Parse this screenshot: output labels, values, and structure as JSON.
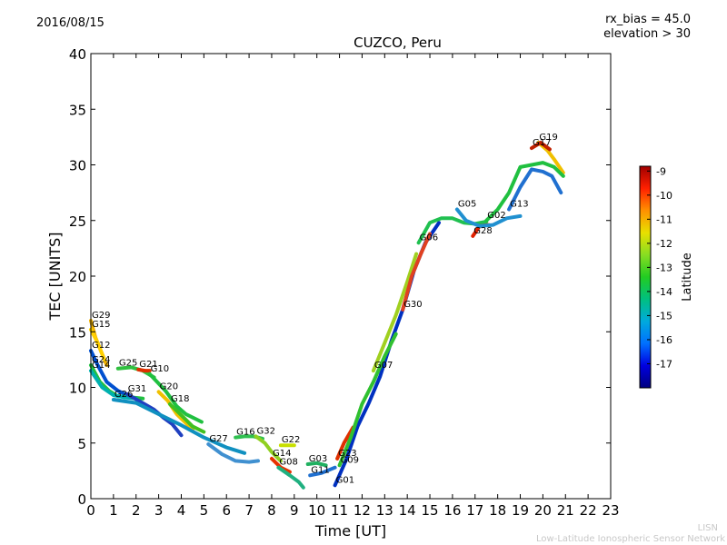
{
  "header": {
    "date": "2016/08/15",
    "annotation_1": "rx_bias = 45.0",
    "annotation_2": "elevation > 30",
    "title": "CUZCO, Peru"
  },
  "footer": {
    "credit_1": "LISN",
    "credit_2": "Low-Latitude Ionospheric Sensor Network"
  },
  "chart_data": {
    "type": "scatter",
    "title": "CUZCO, Peru",
    "xlabel": "Time [UT]",
    "ylabel": "TEC [UNITS]",
    "xlim": [
      0,
      23
    ],
    "ylim": [
      0,
      40
    ],
    "xticks": [
      "0",
      "1",
      "2",
      "3",
      "4",
      "5",
      "6",
      "7",
      "8",
      "9",
      "10",
      "11",
      "12",
      "13",
      "14",
      "15",
      "16",
      "17",
      "18",
      "19",
      "20",
      "21",
      "22",
      "23"
    ],
    "yticks": [
      "0",
      "5",
      "10",
      "15",
      "20",
      "25",
      "30",
      "35",
      "40"
    ],
    "grid": false,
    "colorbar": {
      "label": "Latitude",
      "min": -18,
      "max": -8.8,
      "ticks": [
        "-9",
        "-10",
        "-11",
        "-12",
        "-13",
        "-14",
        "-15",
        "-16",
        "-17"
      ],
      "tick_values": [
        -9,
        -10,
        -11,
        -12,
        -13,
        -14,
        -15,
        -16,
        -17
      ],
      "colormap": [
        "#00007f",
        "#0000ff",
        "#007fff",
        "#00ffff",
        "#7fff7f",
        "#ffff00",
        "#ff7f00",
        "#ff0000",
        "#7f0000"
      ],
      "display_colormap": [
        "#00007f",
        "#0000e0",
        "#0070ff",
        "#00aadd",
        "#00c080",
        "#22cc22",
        "#88dd22",
        "#e8e000",
        "#ff9000",
        "#ff2000",
        "#a00000"
      ]
    },
    "series": [
      {
        "name": "G29",
        "color": "#f0b000",
        "points": [
          [
            0,
            16
          ],
          [
            0.2,
            14.5
          ],
          [
            0.5,
            13
          ],
          [
            0.7,
            12
          ]
        ]
      },
      {
        "name": "G15",
        "color": "#ffd000",
        "points": [
          [
            0,
            15.2
          ],
          [
            0.3,
            14
          ],
          [
            0.6,
            12.5
          ]
        ]
      },
      {
        "name": "G12",
        "color": "#0050d0",
        "points": [
          [
            0,
            13.3
          ],
          [
            0.3,
            12
          ],
          [
            0.7,
            10.5
          ],
          [
            1.2,
            9.7
          ],
          [
            1.8,
            9.1
          ]
        ]
      },
      {
        "name": "G24",
        "color": "#20c040",
        "points": [
          [
            0,
            12
          ],
          [
            0.4,
            10.5
          ],
          [
            0.8,
            9.7
          ],
          [
            1.2,
            9.2
          ],
          [
            1.8,
            9.1
          ],
          [
            2.3,
            9.0
          ]
        ]
      },
      {
        "name": "G14",
        "color": "#00b0b0",
        "points": [
          [
            0,
            11.5
          ],
          [
            0.5,
            10
          ],
          [
            1,
            9.3
          ],
          [
            1.5,
            9.1
          ],
          [
            2,
            9.0
          ]
        ]
      },
      {
        "name": "G25",
        "color": "#30c040",
        "points": [
          [
            1.2,
            11.7
          ],
          [
            1.8,
            11.8
          ],
          [
            2.3,
            11.5
          ],
          [
            2.8,
            10.9
          ]
        ]
      },
      {
        "name": "G21",
        "color": "#e03000",
        "points": [
          [
            2.1,
            11.6
          ],
          [
            2.4,
            11.5
          ],
          [
            2.6,
            11.5
          ]
        ]
      },
      {
        "name": "G20",
        "color": "#f0c000",
        "points": [
          [
            3,
            9.6
          ],
          [
            3.4,
            8.8
          ],
          [
            3.8,
            7.6
          ],
          [
            4.2,
            6.8
          ],
          [
            4.5,
            6.2
          ]
        ]
      },
      {
        "name": "G31",
        "color": "#2040c0",
        "points": [
          [
            1.6,
            9.4
          ],
          [
            2.2,
            8.7
          ],
          [
            2.8,
            8.0
          ],
          [
            3.2,
            7.3
          ],
          [
            3.6,
            6.7
          ],
          [
            4.0,
            5.7
          ]
        ]
      },
      {
        "name": "G18",
        "color": "#40c020",
        "points": [
          [
            3.5,
            8.5
          ],
          [
            4.0,
            7.5
          ],
          [
            4.5,
            6.5
          ],
          [
            5.0,
            6.0
          ]
        ]
      },
      {
        "name": "G10",
        "color": "#20c040",
        "points": [
          [
            2.6,
            11.2
          ],
          [
            3.3,
            9.7
          ],
          [
            3.8,
            8.3
          ],
          [
            4.2,
            7.6
          ],
          [
            4.6,
            7.2
          ],
          [
            4.9,
            6.9
          ]
        ]
      },
      {
        "name": "G26",
        "color": "#1090c0",
        "points": [
          [
            1,
            8.9
          ],
          [
            2,
            8.6
          ],
          [
            3,
            7.6
          ],
          [
            4,
            6.6
          ],
          [
            5,
            5.5
          ],
          [
            6,
            4.6
          ],
          [
            6.8,
            4.1
          ]
        ]
      },
      {
        "name": "G16",
        "color": "#30c050",
        "points": [
          [
            6.4,
            5.5
          ],
          [
            6.8,
            5.6
          ],
          [
            7.2,
            5.6
          ],
          [
            7.6,
            5.4
          ]
        ]
      },
      {
        "name": "G32",
        "color": "#90d020",
        "points": [
          [
            7.3,
            5.6
          ],
          [
            7.7,
            5.0
          ],
          [
            8.0,
            4.2
          ],
          [
            8.4,
            3.4
          ]
        ]
      },
      {
        "name": "G27",
        "color": "#4090d0",
        "points": [
          [
            5.2,
            4.9
          ],
          [
            5.8,
            4.0
          ],
          [
            6.4,
            3.4
          ],
          [
            7.0,
            3.3
          ],
          [
            7.4,
            3.4
          ]
        ]
      },
      {
        "name": "G22",
        "color": "#c8e000",
        "points": [
          [
            8.4,
            4.8
          ],
          [
            9.0,
            4.8
          ]
        ]
      },
      {
        "name": "G14",
        "color": "#e83000",
        "points": [
          [
            8.0,
            3.6
          ],
          [
            8.4,
            2.8
          ],
          [
            8.8,
            2.4
          ]
        ]
      },
      {
        "name": "G08",
        "color": "#20b080",
        "points": [
          [
            8.3,
            2.8
          ],
          [
            8.8,
            2.1
          ],
          [
            9.2,
            1.5
          ],
          [
            9.4,
            1.0
          ]
        ]
      },
      {
        "name": "G03",
        "color": "#20b060",
        "points": [
          [
            9.6,
            3.1
          ],
          [
            10.0,
            3.2
          ],
          [
            10.4,
            3.0
          ]
        ]
      },
      {
        "name": "G11",
        "color": "#2070d0",
        "points": [
          [
            9.7,
            2.1
          ],
          [
            10.2,
            2.3
          ],
          [
            10.8,
            2.8
          ]
        ]
      },
      {
        "name": "G23",
        "color": "#e03000",
        "points": [
          [
            10.9,
            3.6
          ],
          [
            11.2,
            5.0
          ],
          [
            11.6,
            6.4
          ]
        ]
      },
      {
        "name": "G01",
        "color": "#0030c0",
        "points": [
          [
            10.8,
            1.2
          ],
          [
            11.3,
            3.5
          ],
          [
            11.8,
            6.5
          ],
          [
            12.3,
            8.6
          ],
          [
            12.8,
            11.0
          ],
          [
            13.3,
            14.2
          ],
          [
            13.8,
            17.0
          ],
          [
            14.3,
            20.5
          ],
          [
            14.8,
            23.0
          ],
          [
            15.4,
            24.8
          ]
        ]
      },
      {
        "name": "G09",
        "color": "#30c030",
        "points": [
          [
            11.0,
            3.0
          ],
          [
            11.5,
            5.5
          ],
          [
            12.0,
            8.5
          ],
          [
            12.5,
            10.5
          ],
          [
            13.0,
            12.8
          ],
          [
            13.5,
            14.8
          ]
        ]
      },
      {
        "name": "G07",
        "color": "#a0d020",
        "points": [
          [
            12.5,
            11.5
          ],
          [
            13.0,
            14.0
          ],
          [
            13.5,
            16.5
          ],
          [
            14.0,
            19.5
          ],
          [
            14.4,
            22.0
          ]
        ]
      },
      {
        "name": "G30",
        "color": "#e04020",
        "points": [
          [
            13.8,
            17.0
          ],
          [
            14.2,
            20.0
          ],
          [
            14.6,
            22.0
          ],
          [
            15.0,
            23.8
          ]
        ]
      },
      {
        "name": "G06",
        "color": "#20c050",
        "points": [
          [
            14.5,
            23.0
          ],
          [
            15.0,
            24.8
          ],
          [
            15.5,
            25.2
          ],
          [
            16.0,
            25.2
          ],
          [
            16.5,
            24.8
          ],
          [
            17.0,
            24.7
          ],
          [
            17.5,
            24.9
          ]
        ]
      },
      {
        "name": "G28",
        "color": "#e02000",
        "points": [
          [
            16.9,
            23.6
          ],
          [
            17.2,
            24.5
          ],
          [
            17.6,
            24.6
          ]
        ]
      },
      {
        "name": "G05",
        "color": "#2090d0",
        "points": [
          [
            16.2,
            26.0
          ],
          [
            16.6,
            25.0
          ],
          [
            17.2,
            24.5
          ],
          [
            17.8,
            24.6
          ],
          [
            18.4,
            25.2
          ],
          [
            19.0,
            25.4
          ]
        ]
      },
      {
        "name": "G13",
        "color": "#2070d0",
        "points": [
          [
            18.5,
            26.0
          ],
          [
            19.0,
            28.0
          ],
          [
            19.5,
            29.6
          ],
          [
            20.0,
            29.4
          ],
          [
            20.4,
            29.0
          ],
          [
            20.8,
            27.5
          ]
        ]
      },
      {
        "name": "G19",
        "color": "#f0c000",
        "points": [
          [
            19.8,
            32.0
          ],
          [
            20.2,
            31.3
          ],
          [
            20.5,
            30.5
          ],
          [
            20.9,
            29.3
          ]
        ]
      },
      {
        "name": "G17",
        "color": "#c02000",
        "points": [
          [
            19.5,
            31.5
          ],
          [
            19.9,
            32.0
          ],
          [
            20.3,
            31.4
          ]
        ]
      },
      {
        "name": "G02",
        "color": "#20c040",
        "points": [
          [
            17.5,
            25.0
          ],
          [
            18.0,
            26.0
          ],
          [
            18.5,
            27.5
          ],
          [
            19.0,
            29.8
          ],
          [
            19.5,
            30.0
          ],
          [
            20.0,
            30.2
          ],
          [
            20.5,
            29.8
          ],
          [
            20.9,
            29.0
          ]
        ]
      }
    ]
  }
}
